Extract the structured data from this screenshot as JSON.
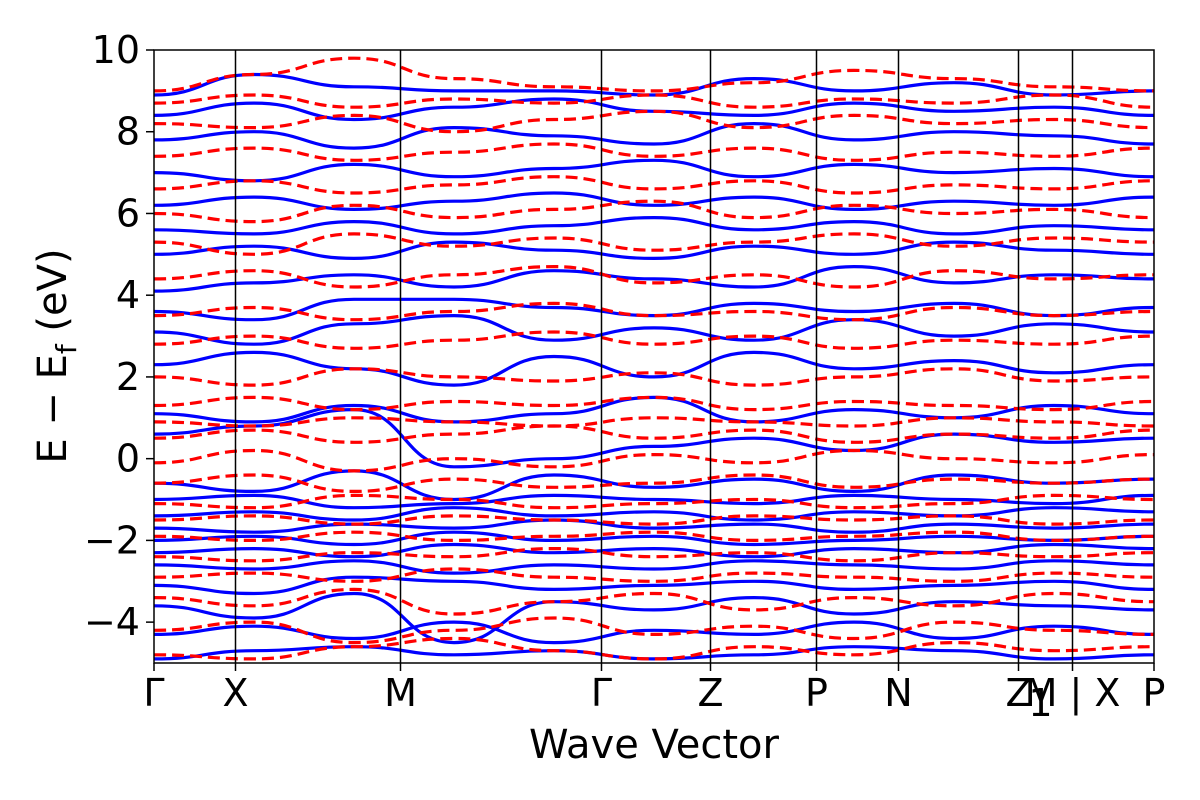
{
  "chart_data": {
    "type": "line",
    "xlabel": "Wave Vector",
    "ylabel_main": "E − E",
    "ylabel_sub": "f",
    "ylabel_unit": "(eV)",
    "ylim": [
      -5,
      10
    ],
    "yticks": [
      -4,
      -2,
      0,
      2,
      4,
      6,
      8,
      10
    ],
    "ytick_labels": [
      "−4",
      "−2",
      "0",
      "2",
      "4",
      "6",
      "8",
      "10"
    ],
    "kpath": [
      {
        "label": "Γ",
        "pos": 0.0
      },
      {
        "label": "X",
        "pos": 0.0815
      },
      {
        "label": "M",
        "pos": 0.2465
      },
      {
        "label": "Γ",
        "pos": 0.4475
      },
      {
        "label": "Z",
        "pos": 0.5565
      },
      {
        "label": "P",
        "pos": 0.6625
      },
      {
        "label": "N",
        "pos": 0.7445
      },
      {
        "label": "Z",
        "pos": 0.8645
      },
      {
        "label": "M | X",
        "pos": 0.9185
      },
      {
        "label": "P",
        "pos": 1.0
      }
    ],
    "z_subscript": "1",
    "grid": false,
    "series": [
      {
        "style": "solid",
        "color": "#0000ff",
        "bands": [
          [
            -4.9,
            -4.7,
            -4.6,
            -4.8,
            -4.7,
            -4.9,
            -4.8,
            -4.6,
            -4.7,
            -4.9,
            -4.8
          ],
          [
            -4.3,
            -4.1,
            -4.4,
            -4.0,
            -4.5,
            -4.2,
            -4.3,
            -4.0,
            -4.4,
            -4.1,
            -4.3
          ],
          [
            -3.6,
            -3.9,
            -3.3,
            -4.5,
            -3.5,
            -3.7,
            -3.4,
            -3.8,
            -3.5,
            -3.6,
            -3.7
          ],
          [
            -3.1,
            -3.3,
            -2.9,
            -3.0,
            -3.2,
            -3.1,
            -3.0,
            -3.2,
            -3.1,
            -3.0,
            -3.2
          ],
          [
            -2.6,
            -2.7,
            -2.5,
            -2.8,
            -2.6,
            -2.7,
            -2.5,
            -2.6,
            -2.7,
            -2.5,
            -2.6
          ],
          [
            -2.3,
            -2.2,
            -2.4,
            -2.1,
            -2.3,
            -2.2,
            -2.4,
            -2.2,
            -2.3,
            -2.1,
            -2.2
          ],
          [
            -2.0,
            -1.9,
            -2.1,
            -1.8,
            -2.0,
            -1.9,
            -2.1,
            -2.0,
            -1.9,
            -2.0,
            -1.9
          ],
          [
            -1.7,
            -1.8,
            -1.6,
            -1.7,
            -1.5,
            -1.7,
            -1.6,
            -1.8,
            -1.6,
            -1.7,
            -1.6
          ],
          [
            -1.4,
            -1.3,
            -1.5,
            -1.2,
            -1.4,
            -1.3,
            -1.5,
            -1.3,
            -1.4,
            -1.2,
            -1.3
          ],
          [
            -1.0,
            -0.9,
            -1.2,
            -1.1,
            -0.9,
            -1.0,
            -1.1,
            -0.9,
            -1.0,
            -1.1,
            -0.9
          ],
          [
            -0.6,
            -0.8,
            -0.3,
            -1.0,
            -0.4,
            -0.7,
            -0.5,
            -0.8,
            -0.4,
            -0.6,
            -0.5
          ],
          [
            0.6,
            0.8,
            1.2,
            -0.2,
            0.0,
            0.3,
            0.5,
            0.2,
            0.6,
            0.4,
            0.5
          ],
          [
            1.1,
            0.9,
            1.3,
            0.9,
            1.1,
            1.5,
            0.9,
            1.2,
            1.0,
            1.3,
            1.1
          ],
          [
            2.3,
            2.6,
            2.2,
            1.8,
            2.5,
            2.0,
            2.6,
            2.2,
            2.4,
            2.1,
            2.3
          ],
          [
            3.1,
            2.8,
            3.3,
            3.5,
            2.9,
            3.2,
            2.9,
            3.4,
            3.0,
            3.3,
            3.1
          ],
          [
            3.6,
            3.4,
            3.9,
            3.9,
            3.7,
            3.5,
            3.8,
            3.6,
            3.8,
            3.5,
            3.7
          ],
          [
            4.1,
            4.3,
            4.5,
            4.2,
            4.6,
            4.4,
            4.2,
            4.7,
            4.3,
            4.5,
            4.4
          ],
          [
            5.0,
            5.2,
            4.9,
            5.3,
            5.1,
            4.9,
            5.2,
            5.0,
            5.3,
            5.1,
            5.0
          ],
          [
            5.6,
            5.5,
            5.8,
            5.5,
            5.7,
            5.9,
            5.6,
            5.8,
            5.5,
            5.7,
            5.6
          ],
          [
            6.2,
            6.4,
            6.1,
            6.3,
            6.5,
            6.2,
            6.4,
            6.1,
            6.3,
            6.2,
            6.4
          ],
          [
            7.0,
            6.8,
            7.2,
            6.9,
            7.1,
            7.3,
            6.9,
            7.2,
            7.0,
            7.1,
            6.9
          ],
          [
            7.8,
            8.0,
            7.6,
            8.1,
            7.9,
            7.7,
            8.2,
            7.8,
            8.0,
            7.9,
            7.7
          ],
          [
            8.4,
            8.7,
            8.3,
            8.6,
            8.8,
            8.5,
            8.4,
            8.7,
            8.5,
            8.6,
            8.4
          ],
          [
            8.9,
            9.4,
            9.1,
            9.0,
            9.0,
            8.9,
            9.3,
            9.0,
            9.2,
            8.9,
            9.0
          ]
        ]
      },
      {
        "style": "dashed",
        "color": "#ff0000",
        "bands": [
          [
            -4.8,
            -4.9,
            -4.6,
            -4.4,
            -4.7,
            -4.9,
            -4.6,
            -4.8,
            -4.5,
            -4.7,
            -4.6
          ],
          [
            -4.2,
            -4.0,
            -4.5,
            -4.2,
            -3.9,
            -4.3,
            -4.1,
            -4.4,
            -4.0,
            -4.2,
            -4.3
          ],
          [
            -3.4,
            -3.6,
            -3.2,
            -3.8,
            -3.5,
            -3.3,
            -3.7,
            -3.4,
            -3.6,
            -3.3,
            -3.5
          ],
          [
            -2.9,
            -2.8,
            -3.0,
            -2.7,
            -2.9,
            -3.0,
            -2.8,
            -2.9,
            -3.0,
            -2.8,
            -2.9
          ],
          [
            -2.4,
            -2.5,
            -2.3,
            -2.4,
            -2.2,
            -2.4,
            -2.3,
            -2.5,
            -2.3,
            -2.4,
            -2.3
          ],
          [
            -1.9,
            -2.0,
            -1.8,
            -2.0,
            -1.9,
            -1.8,
            -2.0,
            -1.9,
            -1.8,
            -2.0,
            -1.9
          ],
          [
            -1.5,
            -1.4,
            -1.6,
            -1.4,
            -1.5,
            -1.6,
            -1.4,
            -1.5,
            -1.4,
            -1.6,
            -1.5
          ],
          [
            -1.1,
            -1.2,
            -0.9,
            -1.0,
            -1.2,
            -1.1,
            -1.0,
            -1.2,
            -1.1,
            -0.9,
            -1.0
          ],
          [
            -0.6,
            -0.4,
            -0.8,
            -0.5,
            -0.7,
            -0.6,
            -0.4,
            -0.7,
            -0.5,
            -0.6,
            -0.5
          ],
          [
            -0.1,
            0.2,
            -0.3,
            0.0,
            -0.2,
            0.1,
            -0.1,
            0.2,
            0.0,
            -0.1,
            0.1
          ],
          [
            0.5,
            0.7,
            0.4,
            0.6,
            0.8,
            0.5,
            0.7,
            0.4,
            0.6,
            0.5,
            0.7
          ],
          [
            0.9,
            0.8,
            1.0,
            0.9,
            0.8,
            1.0,
            0.9,
            0.8,
            1.0,
            0.9,
            0.8
          ],
          [
            1.3,
            1.5,
            1.2,
            1.4,
            1.3,
            1.5,
            1.2,
            1.4,
            1.3,
            1.2,
            1.4
          ],
          [
            2.0,
            1.8,
            2.2,
            2.0,
            1.9,
            2.1,
            1.8,
            2.0,
            2.2,
            1.9,
            2.0
          ],
          [
            2.8,
            3.0,
            2.7,
            2.9,
            3.1,
            2.8,
            3.0,
            2.7,
            2.9,
            2.8,
            3.0
          ],
          [
            3.5,
            3.7,
            3.4,
            3.6,
            3.8,
            3.5,
            3.6,
            3.4,
            3.7,
            3.5,
            3.6
          ],
          [
            4.4,
            4.6,
            4.2,
            4.5,
            4.7,
            4.3,
            4.5,
            4.2,
            4.6,
            4.4,
            4.5
          ],
          [
            5.3,
            5.0,
            5.5,
            5.2,
            5.4,
            5.1,
            5.3,
            5.5,
            5.2,
            5.4,
            5.3
          ],
          [
            6.0,
            5.8,
            6.2,
            5.9,
            6.1,
            6.3,
            5.9,
            6.2,
            6.0,
            6.1,
            5.9
          ],
          [
            6.6,
            6.8,
            6.5,
            6.7,
            6.9,
            6.6,
            6.8,
            6.5,
            6.7,
            6.6,
            6.8
          ],
          [
            7.4,
            7.6,
            7.3,
            7.5,
            7.7,
            7.4,
            7.6,
            7.3,
            7.5,
            7.4,
            7.6
          ],
          [
            8.2,
            8.1,
            8.4,
            8.0,
            8.3,
            8.5,
            8.1,
            8.4,
            8.2,
            8.3,
            8.1
          ],
          [
            8.7,
            8.9,
            8.6,
            8.8,
            8.7,
            8.9,
            8.6,
            8.8,
            8.7,
            8.9,
            8.6
          ],
          [
            9.0,
            9.4,
            9.8,
            9.3,
            9.1,
            9.0,
            9.2,
            9.5,
            9.3,
            9.1,
            9.0
          ]
        ]
      }
    ]
  }
}
